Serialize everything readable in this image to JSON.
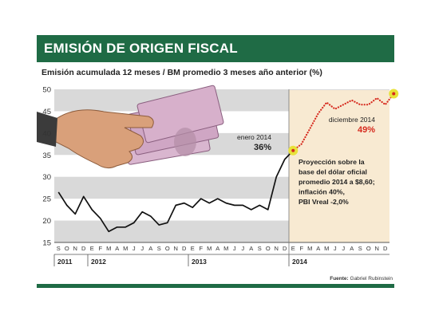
{
  "header": {
    "title": "EMISIÓN DE ORIGEN FISCAL",
    "subtitle": "Emisión acumulada 12 meses / BM promedio 3 meses año anterior (%)"
  },
  "source": {
    "prefix": "Fuente:",
    "name": "Gabriel Rubinstein"
  },
  "annotations": {
    "start_label": "enero 2014",
    "start_value": "36%",
    "end_label": "diciembre 2014",
    "end_value": "49%",
    "projection_text": [
      "Proyección sobre la",
      "base del dólar oficial",
      "promedio 2014 a $8,60;",
      "inflación 40%,",
      "PBI Vreal -2,0%"
    ]
  },
  "colors": {
    "banner": "#1f6b45",
    "line": "#111111",
    "projection": "#d62a1e",
    "highlight": "#e8e23a",
    "projection_area": "#f8ead2",
    "band": "#d9d9d9"
  },
  "chart_data": {
    "type": "line",
    "title": "EMISIÓN DE ORIGEN FISCAL",
    "subtitle": "Emisión acumulada 12 meses / BM promedio 3 meses año anterior (%)",
    "ylim": [
      15,
      50
    ],
    "yticks": [
      15,
      20,
      25,
      30,
      35,
      40,
      45,
      50
    ],
    "month_letters": [
      "S",
      "O",
      "N",
      "D",
      "E",
      "F",
      "M",
      "A",
      "M",
      "J",
      "J",
      "A",
      "S",
      "O",
      "N",
      "D",
      "E",
      "F",
      "M",
      "A",
      "M",
      "J",
      "J",
      "A",
      "S",
      "O",
      "N",
      "D",
      "E",
      "F",
      "M",
      "A",
      "M",
      "J",
      "J",
      "A",
      "S",
      "O",
      "N",
      "D"
    ],
    "years": [
      {
        "label": "2011",
        "start": 0,
        "end": 3
      },
      {
        "label": "2012",
        "start": 4,
        "end": 15
      },
      {
        "label": "2013",
        "start": 16,
        "end": 27
      },
      {
        "label": "2014",
        "start": 28,
        "end": 39
      }
    ],
    "series": [
      {
        "style": "solid",
        "values": [
          26.5,
          23.5,
          21.5,
          25.5,
          22.5,
          20.5,
          17.5,
          18.5,
          18.5,
          19.5,
          22.0,
          21.0,
          19.0,
          19.5,
          23.5,
          24.0,
          23.0,
          25.0,
          24.0,
          25.0,
          24.0,
          23.5,
          23.5,
          22.5,
          23.5,
          22.5,
          30.0,
          34.0,
          36.0
        ]
      },
      {
        "style": "dotted",
        "x_start": 28,
        "values": [
          36.0,
          37.5,
          41.0,
          44.5,
          47.0,
          45.5,
          46.5,
          47.5,
          46.5,
          46.5,
          48.0,
          46.5,
          49.0
        ]
      }
    ]
  }
}
